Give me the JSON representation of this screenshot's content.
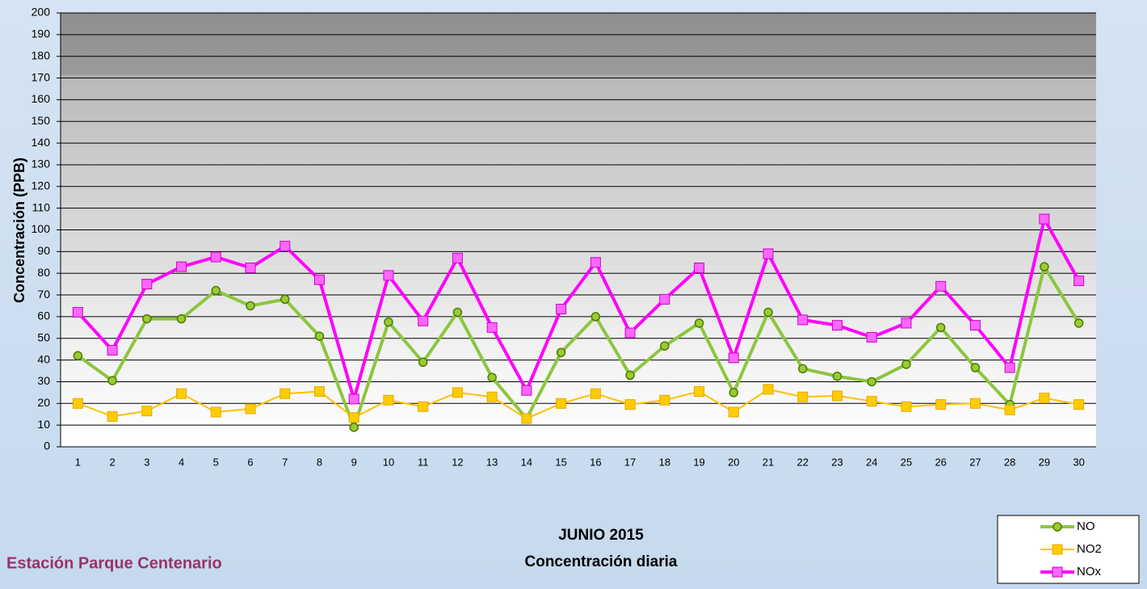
{
  "chart_data": {
    "type": "line",
    "title": "JUNIO 2015",
    "subtitle": "Concentración diaria",
    "annotation": "Estación Parque Centenario",
    "y_label": "Concentración  (PPB)",
    "categories": [
      "1",
      "2",
      "3",
      "4",
      "5",
      "6",
      "7",
      "8",
      "9",
      "10",
      "11",
      "12",
      "13",
      "14",
      "15",
      "16",
      "17",
      "18",
      "19",
      "20",
      "21",
      "22",
      "23",
      "24",
      "25",
      "26",
      "27",
      "28",
      "29",
      "30"
    ],
    "series": [
      {
        "name": "NO",
        "color": "#8cc63f",
        "values": [
          42,
          30.5,
          59,
          59,
          72,
          65,
          68,
          51,
          9,
          57.5,
          39,
          62,
          32,
          13,
          43.5,
          60,
          33,
          46.5,
          57,
          25,
          62,
          36,
          32.5,
          30,
          38,
          55,
          36.5,
          19.5,
          83,
          57
        ]
      },
      {
        "name": "NO2",
        "color": "#ffc000",
        "values": [
          20,
          14,
          16.5,
          24.5,
          16,
          17.5,
          24.5,
          25.5,
          13.5,
          21.5,
          18.5,
          25,
          23,
          13,
          20,
          24.5,
          19.5,
          21.5,
          25.5,
          16,
          26.5,
          23,
          23.5,
          21,
          18.5,
          19.5,
          20,
          17,
          22.5,
          19.5
        ]
      },
      {
        "name": "NOx",
        "color": "#ff00ff",
        "values": [
          62,
          44.5,
          75,
          83,
          87.5,
          82.5,
          92.5,
          77,
          22,
          79,
          58,
          87,
          55,
          26,
          63.5,
          85,
          52.5,
          68,
          82.5,
          41,
          89,
          58.5,
          56,
          50.5,
          57,
          74,
          56,
          36.5,
          105,
          76.5
        ]
      }
    ],
    "ylim": [
      0,
      200
    ],
    "yticks": [
      0,
      10,
      20,
      30,
      40,
      50,
      60,
      70,
      80,
      90,
      100,
      110,
      120,
      130,
      140,
      150,
      160,
      170,
      180,
      190,
      200
    ],
    "grid": true,
    "legend": "bottom-right"
  }
}
